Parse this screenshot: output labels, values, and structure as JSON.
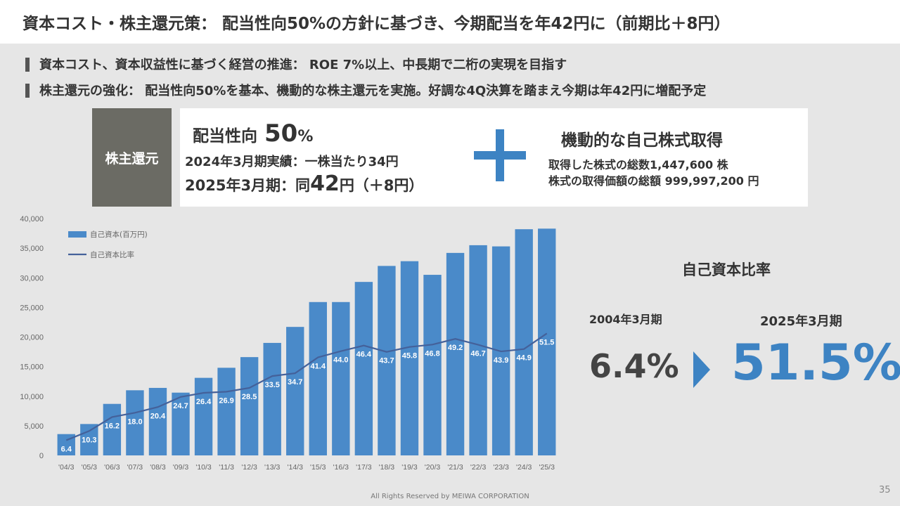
{
  "title": "資本コスト・株主還元策： 配当性向50%の方針に基づき、今期配当を年42円に（前期比＋8円）",
  "bullets": [
    "資本コスト、資本収益性に基づく経営の推進： ROE 7%以上、中長期で二桁の実現を目指す",
    "株主還元の強化： 配当性向50%を基本、機動的な株主還元を実施。好調な4Q決算を踏まえ今期は年42円に増配予定"
  ],
  "shareholder_return": {
    "label": "株主還元",
    "payout_label": "配当性向",
    "payout_value": "50",
    "payout_unit": "%",
    "actual_line": "2024年3月期実績：一株当たり34円",
    "forecast_pre": "2025年3月期：同",
    "forecast_value": "42",
    "forecast_post": "円（＋8円）",
    "buyback_title": "機動的な自己株式取得",
    "buyback_line1": "取得した株式の総数1,447,600 株",
    "buyback_line2": "株式の取得価額の総額 999,997,200 円"
  },
  "equity_ratio": {
    "title": "自己資本比率",
    "from_label": "2004年3月期",
    "from_value": "6.4%",
    "to_label": "2025年3月期",
    "to_value": "51.5%"
  },
  "colors": {
    "accent": "#3d83c3",
    "bar": "#4a8ac9",
    "line": "#44619a",
    "label_box": "#6b6b64"
  },
  "chart_data": {
    "type": "bar",
    "categories": [
      "'04/3",
      "'05/3",
      "'06/3",
      "'07/3",
      "'08/3",
      "'09/3",
      "'10/3",
      "'11/3",
      "'12/3",
      "'13/3",
      "'14/3",
      "'15/3",
      "'16/3",
      "'17/3",
      "'18/3",
      "'19/3",
      "'20/3",
      "'21/3",
      "'22/3",
      "'23/3",
      "'24/3",
      "'25/3"
    ],
    "series": [
      {
        "name": "自己資本(百万円)",
        "type": "bar",
        "values": [
          3600,
          5300,
          8700,
          11000,
          11400,
          10600,
          13100,
          14800,
          16600,
          19000,
          21700,
          25900,
          25900,
          29300,
          32000,
          32800,
          30500,
          34200,
          35500,
          35300,
          38200,
          38300
        ]
      },
      {
        "name": "自己資本比率",
        "type": "line",
        "values": [
          6.4,
          10.3,
          16.2,
          18.0,
          20.4,
          24.7,
          26.4,
          26.9,
          28.5,
          33.5,
          34.7,
          41.4,
          44.0,
          46.4,
          43.7,
          45.8,
          46.8,
          49.2,
          46.7,
          43.9,
          44.9,
          51.5
        ],
        "labels": [
          "6.4",
          "10.3",
          "16.2",
          "18.0",
          "20.4",
          "24.7",
          "26.4",
          "26.9",
          "28.5",
          "33.5",
          "34.7",
          "41.4",
          "44.0",
          "46.4",
          "43.7",
          "45.8",
          "46.8",
          "49.2",
          "46.7",
          "43.9",
          "44.9",
          "51.5"
        ]
      }
    ],
    "yticks": [
      "40,000",
      "35,000",
      "30,000",
      "25,000",
      "20,000",
      "15,000",
      "10,000",
      "5,000",
      "0"
    ],
    "ylim": [
      0,
      40000
    ],
    "legend_position": "top-left",
    "grid": false
  },
  "footer": "All Rights Reserved by MEIWA CORPORATION",
  "page_number": "35"
}
